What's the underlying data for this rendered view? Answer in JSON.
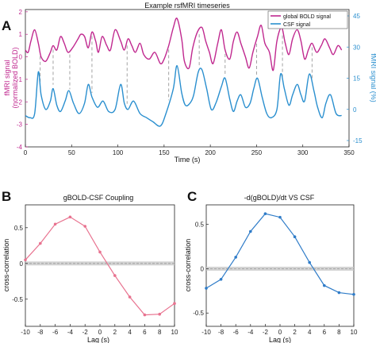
{
  "colors": {
    "bold": "#c0288f",
    "csf": "#2a8fcf",
    "pink": "#e8728f",
    "blue": "#2f7cc8",
    "dashed": "#999999",
    "band": "#c8c8c8"
  },
  "panel_labels": {
    "a": "A",
    "b": "B",
    "c": "C"
  },
  "chart_data": [
    {
      "type": "line",
      "title": "Example rsfMRI timeseries",
      "xlabel": "Time (s)",
      "ylabel_left": [
        "fMRI signal",
        "(normalized BOLD)"
      ],
      "ylabel_right": "fMRI signal (%)",
      "xlim": [
        0,
        350
      ],
      "xticks": [
        "0",
        "50",
        "100",
        "150",
        "200",
        "250",
        "300",
        "350"
      ],
      "ylim_left": [
        -4,
        2.1
      ],
      "yticks_left": [
        "-4",
        "-3",
        "-2",
        "-1",
        "0",
        "1",
        "2"
      ],
      "ylim_right": [
        -15,
        45
      ],
      "yticks_right": [
        "-15",
        "0",
        "15",
        "30",
        "45"
      ],
      "legend": [
        "global BOLD signal",
        "CSF signal"
      ],
      "legend_position": "top-right",
      "series": [
        {
          "name": "global BOLD signal",
          "axis": "left",
          "x": [
            0,
            3,
            6,
            10,
            14,
            17,
            22,
            27,
            30,
            34,
            38,
            42,
            46,
            51,
            57,
            60,
            64,
            68,
            72,
            76,
            79,
            83,
            88,
            92,
            97,
            103,
            107,
            111,
            115,
            119,
            124,
            128,
            134,
            140,
            146,
            150,
            155,
            160,
            164,
            169,
            172,
            177,
            181,
            186,
            191,
            195,
            199,
            203,
            208,
            212,
            216,
            221,
            225,
            229,
            233,
            238,
            242,
            246,
            251,
            255,
            259,
            264,
            268,
            272,
            277,
            281,
            285,
            289,
            294,
            298,
            302,
            306,
            310,
            315,
            320,
            324,
            329,
            333,
            338,
            342
          ],
          "y": [
            0.3,
            0.2,
            0.7,
            1.2,
            0.6,
            0.0,
            -0.2,
            0.2,
            0.5,
            0.3,
            0.9,
            0.6,
            0.2,
            0.4,
            0.8,
            1.0,
            0.9,
            0.4,
            1.1,
            0.7,
            0.2,
            0.9,
            0.5,
            0.3,
            1.2,
            0.7,
            0.3,
            0.8,
            0.5,
            0.2,
            0.6,
            0.1,
            -0.1,
            0.2,
            -0.3,
            -0.1,
            0.5,
            1.3,
            1.7,
            0.8,
            -0.2,
            -0.5,
            0.4,
            1.1,
            1.3,
            0.7,
            0.2,
            -0.3,
            0.6,
            1.2,
            0.3,
            -0.1,
            0.7,
            1.1,
            0.6,
            0.0,
            -0.5,
            0.2,
            0.9,
            1.4,
            0.6,
            0.2,
            -0.6,
            0.7,
            1.3,
            0.6,
            0.1,
            0.8,
            1.2,
            0.7,
            -0.1,
            0.3,
            0.6,
            0.2,
            0.5,
            0.8,
            0.4,
            0.1,
            0.5,
            0.3
          ]
        },
        {
          "name": "CSF signal",
          "axis": "right",
          "x": [
            0,
            5,
            10,
            14,
            17,
            22,
            27,
            30,
            34,
            38,
            43,
            47,
            52,
            58,
            64,
            68,
            72,
            78,
            84,
            90,
            97,
            103,
            107,
            111,
            117,
            124,
            131,
            138,
            146,
            152,
            160,
            164,
            169,
            173,
            178,
            182,
            187,
            191,
            196,
            201,
            206,
            212,
            216,
            221,
            225,
            229,
            233,
            238,
            243,
            247,
            251,
            256,
            261,
            266,
            272,
            276,
            280,
            285,
            289,
            294,
            298,
            302,
            307,
            312,
            316,
            321,
            325,
            330,
            336,
            342
          ],
          "y": [
            -3,
            -4,
            -2,
            18,
            7,
            0,
            4,
            10,
            2,
            -1,
            4,
            9,
            3,
            -2,
            3,
            12,
            6,
            1,
            4,
            -1,
            0,
            12,
            3,
            0,
            4,
            -2,
            -4,
            -6,
            -8,
            -2,
            10,
            21,
            8,
            2,
            3,
            7,
            18,
            19,
            10,
            0,
            3,
            11,
            15,
            5,
            -1,
            4,
            7,
            1,
            3,
            10,
            15,
            6,
            -2,
            -4,
            0,
            17,
            10,
            2,
            7,
            12,
            7,
            4,
            17,
            9,
            1,
            -4,
            3,
            7,
            -2,
            -3
          ]
        }
      ],
      "dashed_times": [
        16,
        30,
        48,
        72,
        110,
        155,
        188,
        216,
        250,
        278,
        310
      ]
    },
    {
      "type": "line",
      "title": "gBOLD-CSF Coupling",
      "xlabel": "Lag (s)",
      "ylabel": "cross-correlation",
      "xlim": [
        -10,
        10
      ],
      "ylim": [
        -0.88,
        0.82
      ],
      "xticks": [
        "-10",
        "-8",
        "-6",
        "-4",
        "-2",
        "0",
        "2",
        "4",
        "6",
        "8",
        "10"
      ],
      "yticks": [
        "-0.5",
        "0",
        "0.5"
      ],
      "x": [
        -10,
        -8,
        -6,
        -4,
        -2,
        0,
        2,
        4,
        6,
        8,
        10
      ],
      "values": [
        0.05,
        0.28,
        0.55,
        0.65,
        0.52,
        0.16,
        -0.17,
        -0.47,
        -0.72,
        -0.71,
        -0.56
      ]
    },
    {
      "type": "line",
      "title": "-d(gBOLD)/dt VS CSF",
      "xlabel": "Lag (s)",
      "ylabel": "cross-correlation",
      "xlim": [
        -10,
        10
      ],
      "ylim": [
        -0.65,
        0.72
      ],
      "xticks": [
        "-10",
        "-8",
        "-6",
        "-4",
        "-2",
        "0",
        "2",
        "4",
        "6",
        "8",
        "10"
      ],
      "yticks": [
        "-0.5",
        "0",
        "0.5"
      ],
      "x": [
        -10,
        -8,
        -6,
        -4,
        -2,
        0,
        2,
        4,
        6,
        8,
        10
      ],
      "values": [
        -0.22,
        -0.12,
        0.13,
        0.42,
        0.62,
        0.58,
        0.36,
        0.07,
        -0.19,
        -0.27,
        -0.29
      ]
    }
  ]
}
